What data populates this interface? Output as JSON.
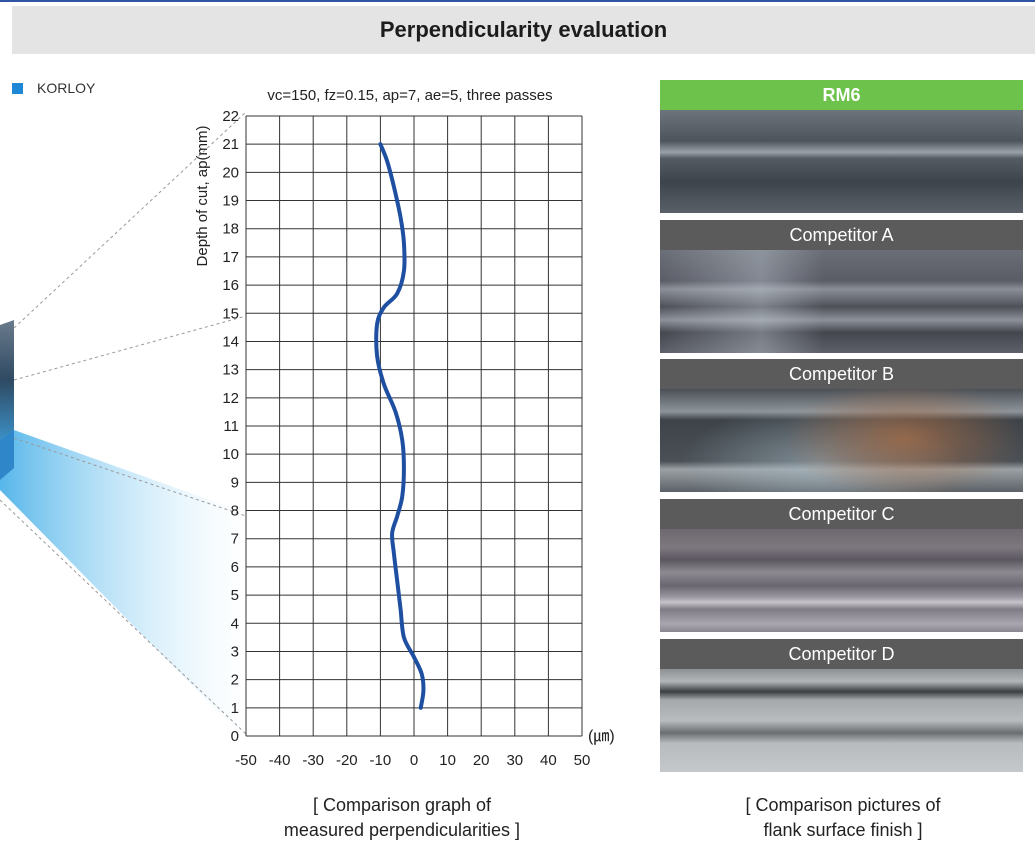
{
  "title": "Perpendicularity evaluation",
  "legend": {
    "label": "KORLOY",
    "color": "#1e88d6"
  },
  "chart_data": {
    "type": "line",
    "title": "vc=150, fz=0.15, ap=7, ae=5, three passes",
    "ylabel": "Depth of cut, ap(mm)",
    "xunit": "(㎛)",
    "xlim": [
      -50,
      50
    ],
    "ylim": [
      0,
      22
    ],
    "xticks": [
      -50,
      -40,
      -30,
      -20,
      -10,
      0,
      10,
      20,
      30,
      40,
      50
    ],
    "yticks": [
      0,
      1,
      2,
      3,
      4,
      5,
      6,
      7,
      8,
      9,
      10,
      11,
      12,
      13,
      14,
      15,
      16,
      17,
      18,
      19,
      20,
      21,
      22
    ],
    "grid": true,
    "series": [
      {
        "color": "#1f4fa0",
        "points": [
          [
            2,
            1.0
          ],
          [
            2.8,
            1.6
          ],
          [
            2.3,
            2.2
          ],
          [
            0,
            2.8
          ],
          [
            -3,
            3.5
          ],
          [
            -4,
            4.5
          ],
          [
            -5,
            5.5
          ],
          [
            -6,
            6.5
          ],
          [
            -6.5,
            7.2
          ],
          [
            -5,
            7.8
          ],
          [
            -3.5,
            8.5
          ],
          [
            -3,
            9.5
          ],
          [
            -3.5,
            10.5
          ],
          [
            -5.5,
            11.5
          ],
          [
            -9,
            12.5
          ],
          [
            -11,
            13.5
          ],
          [
            -11,
            14.6
          ],
          [
            -9,
            15.2
          ],
          [
            -5,
            15.7
          ],
          [
            -3,
            16.5
          ],
          [
            -3,
            17.5
          ],
          [
            -4,
            18.4
          ],
          [
            -6,
            19.5
          ],
          [
            -8,
            20.4
          ],
          [
            -10,
            21.0
          ]
        ]
      }
    ]
  },
  "caption_graph": [
    "[ Comparison graph of",
    "measured perpendicularities ]"
  ],
  "caption_photos": [
    "[ Comparison pictures of",
    "flank surface finish ]"
  ],
  "panels": [
    {
      "label": "RM6"
    },
    {
      "label": "Competitor A"
    },
    {
      "label": "Competitor B"
    },
    {
      "label": "Competitor C"
    },
    {
      "label": "Competitor D"
    }
  ]
}
